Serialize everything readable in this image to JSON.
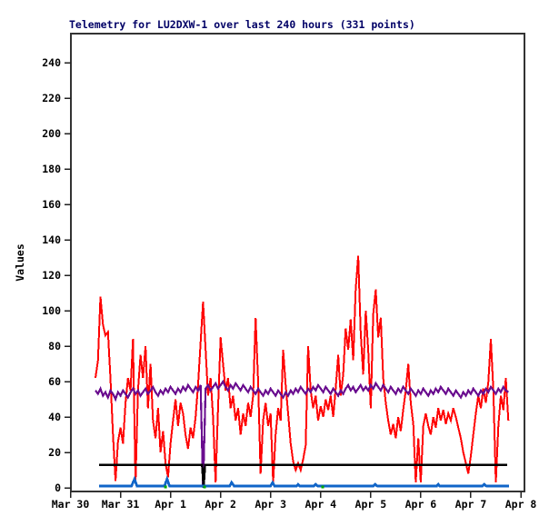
{
  "chart": {
    "title": "Telemetry for LU2DXW-1 over last 240 hours (331 points)",
    "title_color": "#000066",
    "background": "#ffffff",
    "border_color": "#333333"
  },
  "chart_data": {
    "type": "line",
    "title": "Telemetry for LU2DXW-1 over last 240 hours (331 points)",
    "station": "LU2DXW-1",
    "duration_hours": 240,
    "points_count": 331,
    "xlabel": "",
    "ylabel": "Values",
    "ylim": [
      0,
      240
    ],
    "y_ticks": [
      0,
      20,
      40,
      60,
      80,
      100,
      120,
      140,
      160,
      180,
      200,
      220,
      240
    ],
    "x_tick_labels": [
      "Mar 30",
      "Mar 31",
      "Apr 1",
      "Apr 2",
      "Apr 3",
      "Apr 4",
      "Apr 5",
      "Apr 6",
      "Apr 7",
      "Apr 8"
    ],
    "x_unit": "days since Mar 30",
    "grid": false,
    "legend": "none",
    "series": [
      {
        "name": "channel-red",
        "color": "#ff0000",
        "style": "line",
        "width": 2,
        "t0": 0.5,
        "dt": 0.05,
        "values": [
          62,
          72,
          108,
          92,
          86,
          88,
          62,
          30,
          4,
          26,
          34,
          25,
          48,
          62,
          55,
          84,
          3,
          55,
          75,
          62,
          80,
          45,
          70,
          38,
          28,
          45,
          20,
          32,
          14,
          6,
          25,
          38,
          50,
          35,
          48,
          42,
          30,
          22,
          34,
          28,
          40,
          58,
          82,
          105,
          78,
          52,
          62,
          40,
          3,
          45,
          85,
          70,
          55,
          62,
          45,
          52,
          38,
          45,
          30,
          42,
          35,
          48,
          40,
          52,
          96,
          60,
          8,
          38,
          48,
          35,
          42,
          3,
          30,
          45,
          38,
          78,
          58,
          42,
          25,
          15,
          10,
          14,
          10,
          16,
          24,
          80,
          55,
          45,
          52,
          38,
          46,
          40,
          50,
          44,
          52,
          40,
          56,
          75,
          52,
          64,
          90,
          78,
          95,
          72,
          112,
          131,
          88,
          64,
          100,
          78,
          45,
          98,
          112,
          85,
          96,
          62,
          48,
          38,
          30,
          36,
          28,
          40,
          32,
          44,
          55,
          70,
          48,
          36,
          3,
          28,
          3,
          35,
          42,
          35,
          30,
          40,
          34,
          45,
          38,
          44,
          36,
          42,
          38,
          45,
          40,
          34,
          28,
          20,
          14,
          8,
          18,
          30,
          42,
          52,
          45,
          56,
          48,
          60,
          84,
          55,
          3,
          35,
          52,
          44,
          62,
          38
        ]
      },
      {
        "name": "channel-purple",
        "color": "#6a0d8f",
        "style": "line",
        "width": 2.2,
        "t0": 0.5,
        "dt": 0.05,
        "values": [
          55,
          53,
          56,
          52,
          54,
          51,
          55,
          53,
          50,
          54,
          52,
          55,
          53,
          51,
          54,
          56,
          53,
          55,
          52,
          54,
          56,
          53,
          55,
          57,
          54,
          52,
          55,
          53,
          56,
          54,
          57,
          55,
          53,
          56,
          54,
          57,
          55,
          58,
          56,
          54,
          57,
          55,
          58,
          0,
          56,
          58,
          55,
          57,
          59,
          56,
          58,
          60,
          57,
          55,
          58,
          56,
          59,
          57,
          55,
          58,
          56,
          54,
          57,
          55,
          53,
          56,
          54,
          52,
          55,
          53,
          56,
          54,
          52,
          55,
          53,
          51,
          54,
          52,
          55,
          53,
          56,
          54,
          57,
          55,
          53,
          56,
          54,
          57,
          55,
          58,
          56,
          54,
          57,
          55,
          53,
          56,
          54,
          52,
          55,
          53,
          56,
          58,
          55,
          57,
          54,
          56,
          58,
          55,
          57,
          55,
          58,
          56,
          59,
          57,
          55,
          58,
          56,
          54,
          57,
          55,
          53,
          56,
          54,
          57,
          55,
          53,
          56,
          54,
          52,
          55,
          53,
          56,
          54,
          52,
          55,
          53,
          56,
          54,
          57,
          55,
          53,
          56,
          54,
          52,
          55,
          53,
          51,
          54,
          52,
          55,
          53,
          56,
          54,
          52,
          55,
          53,
          56,
          54,
          57,
          55,
          53,
          56,
          54,
          57,
          55,
          54
        ]
      },
      {
        "name": "channel-black",
        "color": "#000000",
        "style": "line",
        "width": 2.4,
        "points": [
          [
            0.57,
            13
          ],
          [
            2.63,
            13
          ],
          [
            2.66,
            0
          ],
          [
            2.69,
            13
          ],
          [
            8.73,
            13
          ]
        ]
      },
      {
        "name": "channel-blue",
        "color": "#1065c8",
        "style": "line",
        "width": 2.8,
        "points": [
          [
            0.57,
            1
          ],
          [
            1.22,
            1
          ],
          [
            1.28,
            5
          ],
          [
            1.33,
            1
          ],
          [
            1.88,
            1
          ],
          [
            1.93,
            5
          ],
          [
            1.98,
            1
          ],
          [
            3.18,
            1
          ],
          [
            3.22,
            3
          ],
          [
            3.27,
            1
          ],
          [
            4.0,
            1
          ],
          [
            4.04,
            3
          ],
          [
            4.08,
            1
          ],
          [
            4.52,
            1
          ],
          [
            4.55,
            2
          ],
          [
            4.58,
            1
          ],
          [
            4.86,
            1
          ],
          [
            4.9,
            2
          ],
          [
            4.94,
            1
          ],
          [
            6.05,
            1
          ],
          [
            6.09,
            2
          ],
          [
            6.13,
            1
          ],
          [
            7.32,
            1
          ],
          [
            7.35,
            2
          ],
          [
            7.38,
            1
          ],
          [
            8.23,
            1
          ],
          [
            8.27,
            2
          ],
          [
            8.31,
            1
          ],
          [
            8.76,
            1
          ]
        ]
      },
      {
        "name": "channel-green",
        "color": "#00a800",
        "style": "dots",
        "points": [
          [
            1.9,
            0.5
          ],
          [
            2.68,
            0.5
          ],
          [
            5.04,
            0.5
          ]
        ]
      }
    ]
  }
}
